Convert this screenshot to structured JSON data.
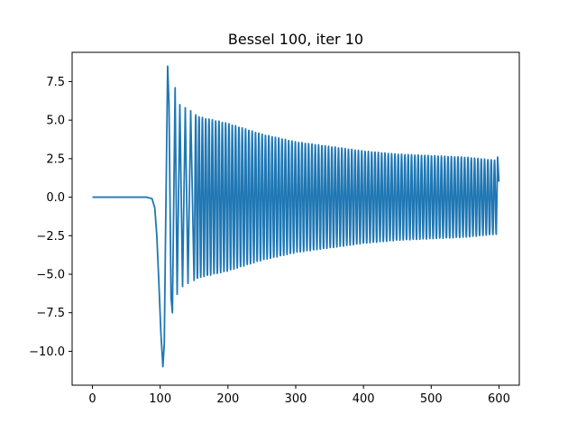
{
  "chart_data": {
    "type": "line",
    "title": "Bessel 100, iter 10",
    "xlabel": "",
    "ylabel": "",
    "xlim": [
      -30,
      630
    ],
    "ylim": [
      -12.2,
      9.4
    ],
    "grid": false,
    "x_ticks": [
      0,
      100,
      200,
      300,
      400,
      500,
      600
    ],
    "y_ticks": [
      -10.0,
      -7.5,
      -5.0,
      -2.5,
      0.0,
      2.5,
      5.0,
      7.5
    ],
    "x_tick_labels": [
      "0",
      "100",
      "200",
      "300",
      "400",
      "500",
      "600"
    ],
    "y_tick_labels": [
      "−10.0",
      "−7.5",
      "−5.0",
      "−2.5",
      "0.0",
      "2.5",
      "5.0",
      "7.5"
    ],
    "series": [
      {
        "color": "#1f77b4",
        "x": [
          0,
          20,
          40,
          60,
          80,
          88,
          92,
          95,
          98,
          101,
          104,
          106,
          108,
          111,
          113,
          116,
          118,
          122,
          125,
          129,
          133,
          137,
          141,
          145,
          150,
          160,
          200,
          250,
          300,
          350,
          400,
          450,
          500,
          550,
          596,
          598,
          600
        ],
        "y": [
          0,
          0,
          0,
          0,
          0,
          -0.1,
          -0.7,
          -2.5,
          -5.5,
          -8.8,
          -11.0,
          -9.5,
          -2.0,
          8.5,
          6.0,
          -6.5,
          -7.5,
          7.1,
          -6.3,
          6.0,
          -5.8,
          5.8,
          -5.6,
          5.6,
          -5.4,
          5.2,
          4.8,
          4.1,
          3.6,
          3.3,
          3.0,
          2.8,
          2.7,
          2.6,
          -2.4,
          2.6,
          1.0
        ],
        "oscillation_period": 4.9,
        "note": ""
      }
    ]
  }
}
